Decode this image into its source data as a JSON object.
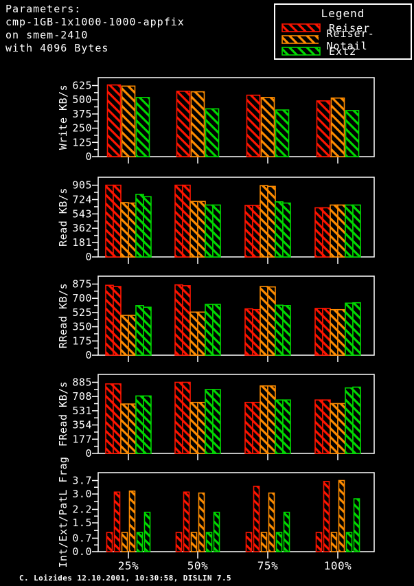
{
  "params": {
    "lines": [
      "Parameters:",
      "cmp-1GB-1x1000-1000-appfix",
      "on smem-2410",
      "with 4096 Bytes"
    ]
  },
  "legend": {
    "title": "Legend",
    "items": [
      {
        "label": "Reiser",
        "color": "red"
      },
      {
        "label": "Reiser-Notail",
        "color": "orange"
      },
      {
        "label": "Ext2",
        "color": "green"
      }
    ]
  },
  "footer": "C. Loizides 12.10.2001, 10:30:58, DISLIN 7.5",
  "colors": {
    "red": "#ff1400",
    "orange": "#ff8c00",
    "green": "#00d900",
    "axis": "#ffffff",
    "text": "#ffffff",
    "background": "#000000"
  },
  "chart_data": [
    {
      "type": "bar",
      "ylabel": "Write KB/s",
      "yticks": [
        "0",
        "125",
        "250",
        "375",
        "500",
        "625"
      ],
      "ylim": [
        0,
        625
      ],
      "categories": [
        "25%",
        "50%",
        "75%",
        "100%"
      ],
      "series": [
        {
          "name": "Reiser",
          "color": "red",
          "values": [
            [
              630
            ],
            [
              575
            ],
            [
              540
            ],
            [
              490
            ]
          ]
        },
        {
          "name": "Reiser-Notail",
          "color": "orange",
          "values": [
            [
              620
            ],
            [
              570
            ],
            [
              520
            ],
            [
              515
            ]
          ]
        },
        {
          "name": "Ext2",
          "color": "green",
          "values": [
            [
              520
            ],
            [
              420
            ],
            [
              410
            ],
            [
              405
            ]
          ]
        }
      ]
    },
    {
      "type": "bar",
      "ylabel": "Read KB/s",
      "yticks": [
        "0",
        "181",
        "362",
        "543",
        "724",
        "905"
      ],
      "ylim": [
        0,
        905
      ],
      "categories": [
        "25%",
        "50%",
        "75%",
        "100%"
      ],
      "series": [
        {
          "name": "Reiser",
          "color": "red",
          "values": [
            [
              905,
              905
            ],
            [
              905,
              905
            ],
            [
              650,
              650
            ],
            [
              620,
              620
            ]
          ]
        },
        {
          "name": "Reiser-Notail",
          "color": "orange",
          "values": [
            [
              685,
              680
            ],
            [
              700,
              700
            ],
            [
              900,
              890
            ],
            [
              655,
              655
            ]
          ]
        },
        {
          "name": "Ext2",
          "color": "green",
          "values": [
            [
              790,
              760
            ],
            [
              655,
              655
            ],
            [
              695,
              680
            ],
            [
              655,
              655
            ]
          ]
        }
      ]
    },
    {
      "type": "bar",
      "ylabel": "RRead KB/s",
      "yticks": [
        "0",
        "175",
        "350",
        "525",
        "700",
        "875"
      ],
      "ylim": [
        0,
        875
      ],
      "categories": [
        "25%",
        "50%",
        "75%",
        "100%"
      ],
      "series": [
        {
          "name": "Reiser",
          "color": "red",
          "values": [
            [
              860,
              845
            ],
            [
              865,
              855
            ],
            [
              570,
              560
            ],
            [
              575,
              575
            ]
          ]
        },
        {
          "name": "Reiser-Notail",
          "color": "orange",
          "values": [
            [
              490,
              490
            ],
            [
              530,
              530
            ],
            [
              845,
              840
            ],
            [
              560,
              560
            ]
          ]
        },
        {
          "name": "Ext2",
          "color": "green",
          "values": [
            [
              610,
              590
            ],
            [
              625,
              625
            ],
            [
              615,
              610
            ],
            [
              640,
              645
            ]
          ]
        }
      ]
    },
    {
      "type": "bar",
      "ylabel": "FRead KB/s",
      "yticks": [
        "0",
        "177",
        "354",
        "531",
        "708",
        "885"
      ],
      "ylim": [
        0,
        885
      ],
      "categories": [
        "25%",
        "50%",
        "75%",
        "100%"
      ],
      "series": [
        {
          "name": "Reiser",
          "color": "red",
          "values": [
            [
              865,
              865
            ],
            [
              885,
              885
            ],
            [
              635,
              635
            ],
            [
              665,
              665
            ]
          ]
        },
        {
          "name": "Reiser-Notail",
          "color": "orange",
          "values": [
            [
              615,
              615
            ],
            [
              635,
              635
            ],
            [
              840,
              840
            ],
            [
              620,
              620
            ]
          ]
        },
        {
          "name": "Ext2",
          "color": "green",
          "values": [
            [
              715,
              715
            ],
            [
              795,
              795
            ],
            [
              665,
              665
            ],
            [
              815,
              825
            ]
          ]
        }
      ]
    },
    {
      "type": "bar",
      "ylabel": "Int/Ext/PatL Frag",
      "yticks": [
        "0.0",
        "0.7",
        "1.5",
        "2.2",
        "3.0",
        "3.7"
      ],
      "ylim": [
        0,
        3.7
      ],
      "categories": [
        "25%",
        "50%",
        "75%",
        "100%"
      ],
      "series": [
        {
          "name": "Reiser",
          "color": "red",
          "values": [
            [
              1.0,
              3.1
            ],
            [
              1.0,
              3.1
            ],
            [
              1.0,
              3.4
            ],
            [
              1.0,
              3.65
            ]
          ]
        },
        {
          "name": "Reiser-Notail",
          "color": "orange",
          "values": [
            [
              1.0,
              3.15
            ],
            [
              1.0,
              3.05
            ],
            [
              1.0,
              3.05
            ],
            [
              1.0,
              3.7
            ]
          ]
        },
        {
          "name": "Ext2",
          "color": "green",
          "values": [
            [
              1.0,
              2.05
            ],
            [
              1.0,
              2.05
            ],
            [
              1.0,
              2.05
            ],
            [
              1.0,
              2.75
            ]
          ]
        }
      ]
    }
  ]
}
